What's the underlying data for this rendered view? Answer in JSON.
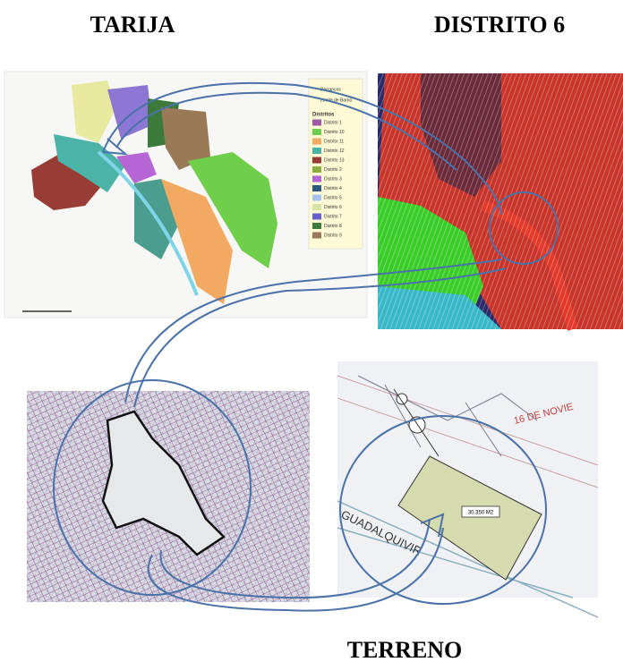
{
  "header": {
    "left_title": "TARIJA",
    "right_title": "DISTRITO 6"
  },
  "footer": {
    "title": "TERRENO"
  },
  "city_map": {
    "legend_top": [
      "Barrancos",
      "Límite de Barrio"
    ],
    "legend_title": "Distritos",
    "legend": [
      {
        "label": "Distrito 1",
        "color": "#a05aa8"
      },
      {
        "label": "Distrito 10",
        "color": "#6fcf4a"
      },
      {
        "label": "Distrito 11",
        "color": "#f2a962"
      },
      {
        "label": "Distrito 12",
        "color": "#4bb3a7"
      },
      {
        "label": "Distrito 13",
        "color": "#9a3c36"
      },
      {
        "label": "Distrito 2",
        "color": "#8cae3c"
      },
      {
        "label": "Distrito 3",
        "color": "#b565d4"
      },
      {
        "label": "Distrito 4",
        "color": "#2d5a7a"
      },
      {
        "label": "Distrito 5",
        "color": "#a9c4e8"
      },
      {
        "label": "Distrito 6",
        "color": "#d8e4a6"
      },
      {
        "label": "Distrito 7",
        "color": "#6a5fcf"
      },
      {
        "label": "Distrito 8",
        "color": "#3c7a3c"
      },
      {
        "label": "Distrito 9",
        "color": "#9a7a56"
      }
    ]
  },
  "site_plan": {
    "street": "GUADALQUIVIR",
    "avenue": "16 DE NOVIE",
    "area_label": "30.350 M2"
  }
}
